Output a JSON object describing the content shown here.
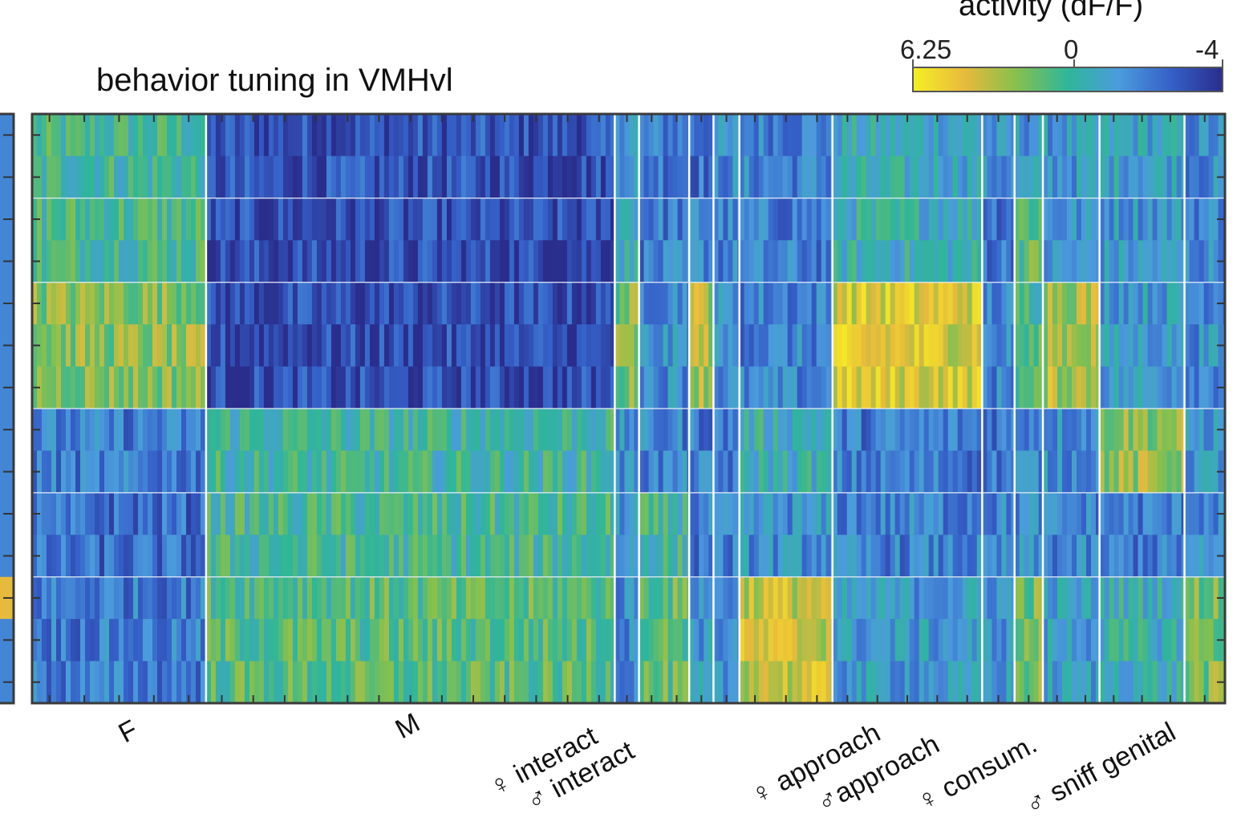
{
  "chart_data": {
    "type": "heatmap",
    "title": "behavior tuning in VMHvl",
    "colorbar": {
      "title": "activity (dF/F)",
      "max": 6.25,
      "zero": 0,
      "min": -4,
      "tick_labels": [
        "6.25",
        "0",
        "-4"
      ],
      "colors": [
        "#f5f024",
        "#e8ba3c",
        "#86c04e",
        "#2fb69a",
        "#4b9bdc",
        "#3560c8",
        "#2a2d8c"
      ]
    },
    "x_labels": [
      "F",
      "M",
      "♀ interact",
      "♂ interact",
      "♀ approach",
      "♂approach",
      "♀ consum.",
      "♂ sniff genital"
    ],
    "column_groups": [
      {
        "name": "F",
        "width": 215
      },
      {
        "name": "M",
        "width": 505
      },
      {
        "name": "♀ interact",
        "width": 30
      },
      {
        "name": "♂ interact",
        "width": 62
      },
      {
        "name": "g5",
        "width": 30
      },
      {
        "name": "g6",
        "width": 32
      },
      {
        "name": "♀ approach",
        "width": 115
      },
      {
        "name": "♂approach",
        "width": 185
      },
      {
        "name": "♀ consum.",
        "width": 40
      },
      {
        "name": "g10",
        "width": 35
      },
      {
        "name": "g11",
        "width": 70
      },
      {
        "name": "♂ sniff genital",
        "width": 105
      },
      {
        "name": "g13",
        "width": 50
      }
    ],
    "row_blocks": [
      {
        "rows": 2
      },
      {
        "rows": 2
      },
      {
        "rows": 3
      },
      {
        "rows": 2
      },
      {
        "rows": 2
      },
      {
        "rows": 3
      }
    ],
    "block_means": [
      [
        1.2,
        -2.8,
        0.0,
        -1.5,
        -1.8,
        -1.0,
        -1.2,
        0.2,
        -1.0,
        -0.5,
        -0.5,
        0.0,
        -1.0
      ],
      [
        1.5,
        -3.0,
        0.5,
        -1.5,
        -1.0,
        -1.3,
        -1.5,
        0.5,
        -1.5,
        2.0,
        -0.8,
        -0.5,
        -1.0
      ],
      [
        2.8,
        -3.0,
        2.5,
        -0.8,
        3.5,
        -1.0,
        -1.3,
        4.5,
        -1.2,
        1.5,
        3.5,
        -0.3,
        -0.8
      ],
      [
        -1.5,
        1.0,
        -1.0,
        -1.3,
        -1.5,
        -1.5,
        0.5,
        -1.5,
        -1.5,
        -1.0,
        -0.8,
        3.0,
        -0.5
      ],
      [
        -2.0,
        1.2,
        -0.5,
        1.0,
        -1.5,
        -1.5,
        -0.8,
        -1.3,
        -1.3,
        -1.0,
        -1.3,
        -1.5,
        -1.0
      ],
      [
        -1.5,
        1.8,
        -1.0,
        2.0,
        -0.5,
        -0.8,
        4.0,
        -0.5,
        -0.5,
        2.5,
        -0.3,
        0.5,
        2.5
      ]
    ]
  }
}
